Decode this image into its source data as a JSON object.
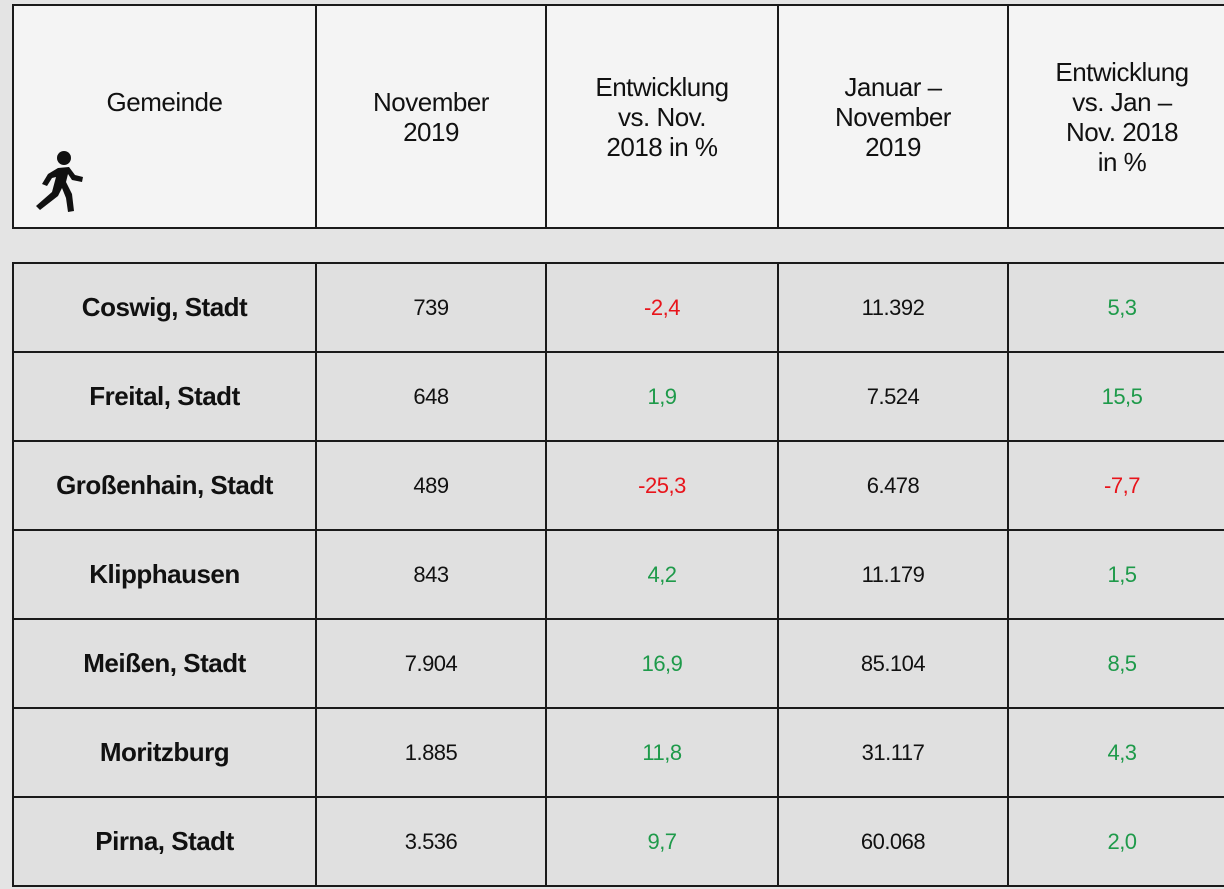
{
  "table": {
    "header": [
      "Gemeinde",
      "November\n2019",
      "Entwicklung\nvs. Nov.\n2018 in %",
      "Januar –\nNovember\n2019",
      "Entwicklung\nvs. Jan –\nNov. 2018\nin %"
    ],
    "rows": [
      [
        "Coswig, Stadt",
        "739",
        "-2,4",
        "11.392",
        "5,3"
      ],
      [
        "Freital, Stadt",
        "648",
        "1,9",
        "7.524",
        "15,5"
      ],
      [
        "Großenhain, Stadt",
        "489",
        "-25,3",
        "6.478",
        "-7,7"
      ],
      [
        "Klipphausen",
        "843",
        "4,2",
        "11.179",
        "1,5"
      ],
      [
        "Meißen, Stadt",
        "7.904",
        "16,9",
        "85.104",
        "8,5"
      ],
      [
        "Moritzburg",
        "1.885",
        "11,8",
        "31.117",
        "4,3"
      ],
      [
        "Pirna, Stadt",
        "3.536",
        "9,7",
        "60.068",
        "2,0"
      ]
    ]
  }
}
